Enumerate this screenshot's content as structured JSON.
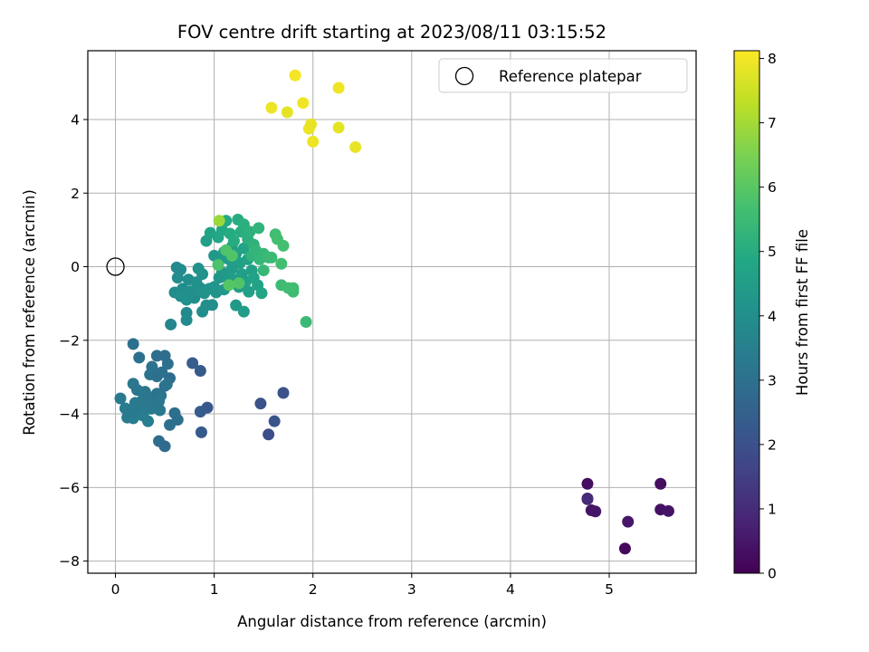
{
  "chart_data": {
    "type": "scatter",
    "title": "FOV centre drift starting at 2023/08/11 03:15:52",
    "xlabel": "Angular distance from reference (arcmin)",
    "ylabel": "Rotation from reference (arcmin)",
    "xlim": [
      -0.28,
      5.88
    ],
    "ylim": [
      -8.33,
      5.87
    ],
    "xticks": [
      0,
      1,
      2,
      3,
      4,
      5
    ],
    "yticks": [
      -8,
      -6,
      -4,
      -2,
      0,
      2,
      4
    ],
    "grid": true,
    "colormap": "viridis",
    "colorbar": {
      "label": "Hours from first FF file",
      "range": [
        0,
        8.12
      ],
      "ticks": [
        0,
        1,
        2,
        3,
        4,
        5,
        6,
        7,
        8
      ]
    },
    "legend": {
      "position": "top-right",
      "entries": [
        "Reference platepar"
      ]
    },
    "reference_point": {
      "x": 0,
      "y": 0
    },
    "points": [
      [
        4.78,
        -5.9,
        0.3
      ],
      [
        4.78,
        -6.3,
        0.9
      ],
      [
        4.82,
        -6.62,
        0.4
      ],
      [
        4.86,
        -6.65,
        0.5
      ],
      [
        5.16,
        -7.66,
        0.2
      ],
      [
        5.19,
        -6.93,
        0.5
      ],
      [
        5.52,
        -5.9,
        0.3
      ],
      [
        5.52,
        -6.6,
        0.35
      ],
      [
        5.6,
        -6.64,
        0.45
      ],
      [
        4.78,
        -6.32,
        1.0
      ],
      [
        1.47,
        -3.72,
        2.0
      ],
      [
        1.55,
        -4.56,
        1.9
      ],
      [
        1.61,
        -4.2,
        2.1
      ],
      [
        1.7,
        -3.43,
        2.05
      ],
      [
        0.86,
        -2.83,
        2.3
      ],
      [
        0.93,
        -3.83,
        2.2
      ],
      [
        0.87,
        -4.5,
        2.25
      ],
      [
        0.86,
        -3.94,
        2.35
      ],
      [
        0.78,
        -2.62,
        2.4
      ],
      [
        0.18,
        -2.1,
        3.0
      ],
      [
        0.24,
        -2.47,
        3.0
      ],
      [
        0.42,
        -2.42,
        2.9
      ],
      [
        0.5,
        -2.42,
        2.95
      ],
      [
        0.53,
        -2.64,
        3.0
      ],
      [
        0.37,
        -2.72,
        3.05
      ],
      [
        0.47,
        -2.87,
        3.0
      ],
      [
        0.35,
        -2.93,
        3.1
      ],
      [
        0.42,
        -2.98,
        3.0
      ],
      [
        0.55,
        -3.03,
        2.9
      ],
      [
        0.5,
        -3.24,
        3.0
      ],
      [
        0.52,
        -3.2,
        3.1
      ],
      [
        0.18,
        -3.18,
        3.2
      ],
      [
        0.22,
        -3.35,
        3.15
      ],
      [
        0.3,
        -3.4,
        3.2
      ],
      [
        0.28,
        -3.6,
        3.25
      ],
      [
        0.35,
        -3.55,
        3.2
      ],
      [
        0.42,
        -3.45,
        3.1
      ],
      [
        0.46,
        -3.5,
        3.15
      ],
      [
        0.2,
        -3.7,
        3.3
      ],
      [
        0.25,
        -3.82,
        3.3
      ],
      [
        0.32,
        -3.72,
        3.2
      ],
      [
        0.38,
        -3.8,
        3.3
      ],
      [
        0.44,
        -3.66,
        3.2
      ],
      [
        0.45,
        -3.9,
        3.25
      ],
      [
        0.05,
        -3.58,
        3.3
      ],
      [
        0.1,
        -3.85,
        3.35
      ],
      [
        0.12,
        -4.1,
        3.35
      ],
      [
        0.18,
        -4.12,
        3.4
      ],
      [
        0.15,
        -3.95,
        3.3
      ],
      [
        0.22,
        -4.0,
        3.35
      ],
      [
        0.26,
        -3.92,
        3.3
      ],
      [
        0.28,
        -4.05,
        3.4
      ],
      [
        0.33,
        -4.2,
        3.4
      ],
      [
        0.36,
        -3.86,
        3.3
      ],
      [
        0.44,
        -4.74,
        2.9
      ],
      [
        0.5,
        -4.88,
        2.8
      ],
      [
        0.55,
        -4.3,
        3.0
      ],
      [
        0.6,
        -3.98,
        3.0
      ],
      [
        0.63,
        -4.16,
        2.95
      ],
      [
        0.62,
        -0.02,
        3.8
      ],
      [
        0.66,
        -0.08,
        3.85
      ],
      [
        0.56,
        -1.57,
        3.7
      ],
      [
        0.72,
        -1.25,
        3.8
      ],
      [
        0.72,
        -1.45,
        3.85
      ],
      [
        0.63,
        -0.3,
        3.9
      ],
      [
        0.6,
        -0.7,
        3.9
      ],
      [
        0.68,
        -0.6,
        3.95
      ],
      [
        0.74,
        -0.35,
        4.0
      ],
      [
        0.8,
        -0.85,
        3.95
      ],
      [
        0.82,
        -0.42,
        4.05
      ],
      [
        0.86,
        -0.58,
        4.05
      ],
      [
        0.88,
        -1.22,
        3.95
      ],
      [
        0.92,
        -1.05,
        4.0
      ],
      [
        0.98,
        -1.04,
        4.0
      ],
      [
        0.84,
        -0.05,
        4.1
      ],
      [
        0.88,
        -0.2,
        4.1
      ],
      [
        0.76,
        -0.67,
        4.0
      ],
      [
        0.66,
        -0.8,
        4.0
      ],
      [
        0.72,
        -0.9,
        4.05
      ],
      [
        0.9,
        -0.72,
        4.1
      ],
      [
        0.95,
        -0.6,
        4.15
      ],
      [
        1.0,
        -0.55,
        4.2
      ],
      [
        1.05,
        -0.3,
        4.25
      ],
      [
        1.02,
        -0.7,
        4.2
      ],
      [
        1.08,
        -0.15,
        4.3
      ],
      [
        1.1,
        -0.62,
        4.3
      ],
      [
        1.12,
        -0.25,
        4.35
      ],
      [
        1.15,
        -0.45,
        4.4
      ],
      [
        1.18,
        -0.05,
        4.4
      ],
      [
        1.2,
        -0.35,
        4.45
      ],
      [
        1.22,
        -1.05,
        4.35
      ],
      [
        1.25,
        -0.55,
        4.5
      ],
      [
        1.28,
        -0.2,
        4.5
      ],
      [
        1.3,
        -1.22,
        4.45
      ],
      [
        1.32,
        -0.4,
        4.6
      ],
      [
        1.35,
        -0.68,
        4.55
      ],
      [
        1.38,
        -0.1,
        4.6
      ],
      [
        1.4,
        -0.3,
        4.65
      ],
      [
        1.44,
        -0.5,
        4.7
      ],
      [
        1.48,
        -0.72,
        4.75
      ],
      [
        1.0,
        0.3,
        4.3
      ],
      [
        1.05,
        0.15,
        4.35
      ],
      [
        1.1,
        0.4,
        4.4
      ],
      [
        1.15,
        0.2,
        4.45
      ],
      [
        1.18,
        0.55,
        4.5
      ],
      [
        1.2,
        0.05,
        4.5
      ],
      [
        1.22,
        0.35,
        4.55
      ],
      [
        1.26,
        0.1,
        4.6
      ],
      [
        1.3,
        0.5,
        4.65
      ],
      [
        1.34,
        0.2,
        4.7
      ],
      [
        0.92,
        0.7,
        4.6
      ],
      [
        0.96,
        0.92,
        4.7
      ],
      [
        1.04,
        0.8,
        4.8
      ],
      [
        1.08,
        1.0,
        4.85
      ],
      [
        1.12,
        1.25,
        4.9
      ],
      [
        1.16,
        0.9,
        4.95
      ],
      [
        1.2,
        0.7,
        5.0
      ],
      [
        1.24,
        1.28,
        5.0
      ],
      [
        1.27,
        0.95,
        5.05
      ],
      [
        1.3,
        1.15,
        5.1
      ],
      [
        1.34,
        0.75,
        5.1
      ],
      [
        1.36,
        0.95,
        5.15
      ],
      [
        1.4,
        0.6,
        5.2
      ],
      [
        1.45,
        1.05,
        5.25
      ],
      [
        1.38,
        0.3,
        5.25
      ],
      [
        1.42,
        0.45,
        5.3
      ],
      [
        1.46,
        0.2,
        5.35
      ],
      [
        1.5,
        0.35,
        5.35
      ],
      [
        1.5,
        -0.1,
        5.4
      ],
      [
        1.55,
        0.25,
        5.45
      ],
      [
        1.58,
        0.25,
        5.5
      ],
      [
        1.62,
        0.88,
        5.6
      ],
      [
        1.64,
        0.75,
        5.65
      ],
      [
        1.7,
        0.57,
        5.7
      ],
      [
        1.68,
        0.08,
        5.65
      ],
      [
        1.68,
        -0.5,
        5.55
      ],
      [
        1.75,
        -0.58,
        5.6
      ],
      [
        1.8,
        -0.68,
        5.55
      ],
      [
        1.8,
        -0.58,
        5.6
      ],
      [
        1.93,
        -1.5,
        5.5
      ],
      [
        1.04,
        0.05,
        5.8
      ],
      [
        1.12,
        0.45,
        5.85
      ],
      [
        1.18,
        0.3,
        5.9
      ],
      [
        1.25,
        -0.45,
        5.9
      ],
      [
        1.15,
        -0.5,
        5.95
      ],
      [
        1.05,
        1.25,
        6.9
      ],
      [
        1.58,
        4.32,
        7.9
      ],
      [
        1.74,
        4.2,
        7.8
      ],
      [
        1.82,
        5.2,
        8.0
      ],
      [
        1.9,
        4.45,
        7.95
      ],
      [
        1.96,
        3.75,
        7.9
      ],
      [
        1.98,
        3.87,
        7.85
      ],
      [
        2.0,
        3.4,
        7.9
      ],
      [
        2.26,
        4.86,
        7.95
      ],
      [
        2.26,
        3.78,
        7.8
      ],
      [
        2.43,
        3.25,
        7.85
      ]
    ]
  }
}
